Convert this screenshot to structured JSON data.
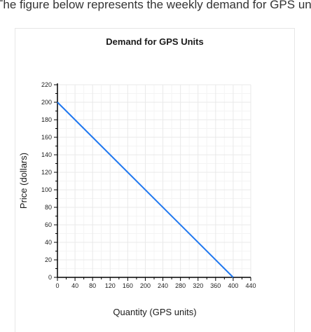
{
  "intro_text": "The figure below represents the weekly demand for GPS units.",
  "chart_data": {
    "type": "line",
    "title": "Demand for GPS Units",
    "xlabel": "Quantity (GPS units)",
    "ylabel": "Price (dollars)",
    "xlim": [
      0,
      440
    ],
    "ylim": [
      0,
      220
    ],
    "xticks": [
      0,
      40,
      80,
      120,
      160,
      200,
      240,
      280,
      320,
      360,
      400,
      440
    ],
    "yticks": [
      0,
      20,
      40,
      60,
      80,
      100,
      120,
      140,
      160,
      180,
      200,
      220
    ],
    "grid": true,
    "series": [
      {
        "color": "#1f77f0",
        "points": [
          {
            "x": 0,
            "y": 200
          },
          {
            "x": 400,
            "y": 0
          }
        ]
      }
    ]
  }
}
